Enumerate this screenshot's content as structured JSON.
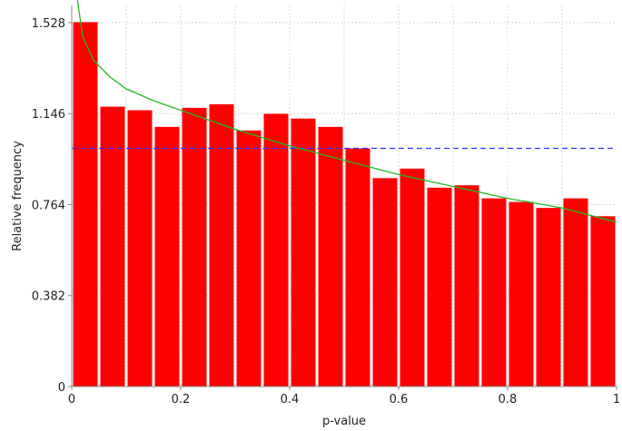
{
  "chart_data": {
    "type": "bar",
    "title": "",
    "xlabel": "p-value",
    "ylabel": "Relative frequency",
    "xlim": [
      0,
      1
    ],
    "ylim": [
      0,
      1.6
    ],
    "x_ticks": [
      0,
      0.2,
      0.4,
      0.6,
      0.8,
      1
    ],
    "x_tick_labels": [
      "0",
      "0.2",
      "0.4",
      "0.6",
      "0.8",
      "1"
    ],
    "y_ticks": [
      0,
      0.382,
      0.764,
      1.146,
      1.528
    ],
    "y_tick_labels": [
      "0",
      "0.382",
      "0.764",
      "1.146",
      "1.528"
    ],
    "grid": true,
    "bin_width": 0.05,
    "bins_start": [
      0,
      0.05,
      0.1,
      0.15,
      0.2,
      0.25,
      0.3,
      0.35,
      0.4,
      0.45,
      0.5,
      0.55,
      0.6,
      0.65,
      0.7,
      0.75,
      0.8,
      0.85,
      0.9,
      0.95
    ],
    "values": [
      1.53,
      1.175,
      1.16,
      1.09,
      1.17,
      1.185,
      1.075,
      1.145,
      1.125,
      1.09,
      1.0,
      0.875,
      0.915,
      0.835,
      0.845,
      0.79,
      0.775,
      0.75,
      0.79,
      0.715
    ],
    "bar_color": "#ff0000",
    "reference_line": {
      "y": 1.0,
      "style": "dashed",
      "color": "#3333ff"
    },
    "fit_curve": {
      "color": "#22bb22",
      "x": [
        0.005,
        0.02,
        0.04,
        0.07,
        0.1,
        0.15,
        0.2,
        0.3,
        0.4,
        0.5,
        0.6,
        0.7,
        0.8,
        0.9,
        1.0
      ],
      "y": [
        1.71,
        1.47,
        1.37,
        1.3,
        1.25,
        1.2,
        1.16,
        1.08,
        1.01,
        0.95,
        0.89,
        0.84,
        0.79,
        0.75,
        0.69
      ]
    }
  }
}
